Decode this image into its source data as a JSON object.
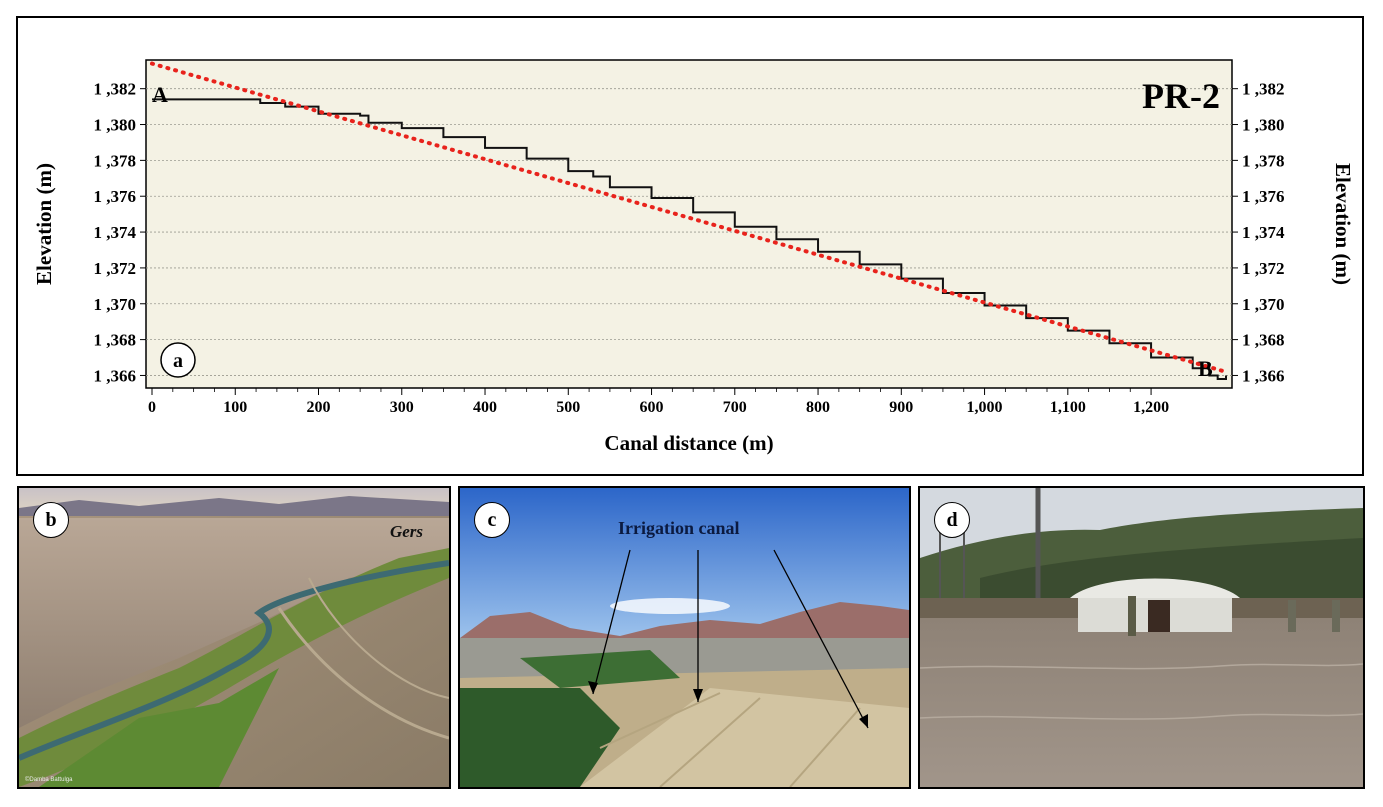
{
  "chart_data": {
    "type": "line",
    "panel_label": "a",
    "profile_label": "PR-2",
    "start_label": "A",
    "end_label": "B",
    "xlabel": "Canal distance (m)",
    "ylabel_left": "Elevation (m)",
    "ylabel_right": "Elevation (m)",
    "xlim": [
      0,
      1290
    ],
    "ylim": [
      1365.3,
      1383.6
    ],
    "x_ticks": [
      0,
      100,
      200,
      300,
      400,
      500,
      600,
      700,
      800,
      900,
      1000,
      1100,
      1200
    ],
    "x_tick_labels": [
      "0",
      "100",
      "200",
      "300",
      "400",
      "500",
      "600",
      "700",
      "800",
      "900",
      "1,000",
      "1,100",
      "1,200"
    ],
    "y_ticks": [
      1366,
      1368,
      1370,
      1372,
      1374,
      1376,
      1378,
      1380,
      1382
    ],
    "y_tick_labels": [
      "1 ,366",
      "1 ,368",
      "1 ,370",
      "1 ,372",
      "1 ,374",
      "1 ,376",
      "1 ,378",
      "1 ,380",
      "1 ,382"
    ],
    "grid": "horizontal dotted",
    "background_color": "#f4f2e4",
    "series": [
      {
        "style": "solid",
        "color": "#111111",
        "x": [
          0,
          40,
          100,
          130,
          160,
          200,
          250,
          260,
          300,
          350,
          400,
          450,
          500,
          530,
          550,
          600,
          650,
          700,
          750,
          800,
          850,
          900,
          950,
          1000,
          1050,
          1100,
          1150,
          1200,
          1250,
          1270,
          1280,
          1290
        ],
        "y": [
          1381.4,
          1381.4,
          1381.4,
          1381.2,
          1381.0,
          1380.6,
          1380.5,
          1380.1,
          1379.8,
          1379.3,
          1378.7,
          1378.1,
          1377.4,
          1377.1,
          1376.5,
          1375.9,
          1375.1,
          1374.3,
          1373.6,
          1372.9,
          1372.2,
          1371.4,
          1370.6,
          1369.9,
          1369.2,
          1368.5,
          1367.8,
          1367.0,
          1366.4,
          1366.0,
          1365.8,
          1366.0
        ]
      },
      {
        "style": "dotted",
        "color": "#e8231c",
        "x": [
          0,
          1290
        ],
        "y": [
          1383.4,
          1366.2
        ]
      }
    ]
  },
  "photos": {
    "b": {
      "label": "b",
      "caption": "Gers",
      "credit": "©Damba Battulga"
    },
    "c": {
      "label": "c",
      "caption": "Irrigation canal"
    },
    "d": {
      "label": "d"
    }
  }
}
